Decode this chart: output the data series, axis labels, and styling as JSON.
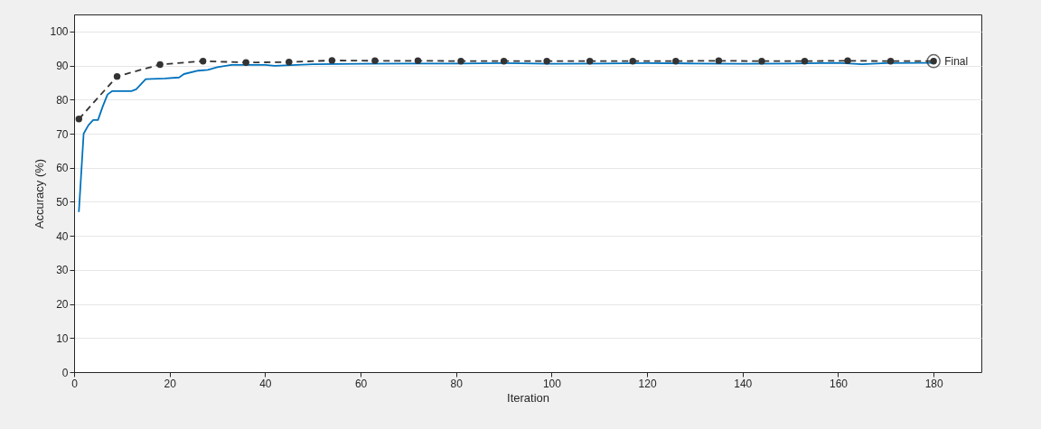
{
  "chart_data": {
    "type": "line",
    "xlabel": "Iteration",
    "ylabel": "Accuracy (%)",
    "xlim": [
      0,
      190
    ],
    "ylim": [
      0,
      105
    ],
    "xticks": [
      0,
      20,
      40,
      60,
      80,
      100,
      120,
      140,
      160,
      180
    ],
    "yticks": [
      0,
      10,
      20,
      30,
      40,
      50,
      60,
      70,
      80,
      90,
      100
    ],
    "grid": "y",
    "series": [
      {
        "color": "#0072bd",
        "line_style": "solid",
        "marker": "none",
        "x": [
          1,
          2,
          3,
          4,
          5,
          6,
          7,
          8,
          12,
          13,
          15,
          19,
          22,
          23,
          26,
          28,
          30,
          33,
          40,
          42,
          50,
          60,
          70,
          80,
          90,
          100,
          110,
          120,
          130,
          140,
          150,
          160,
          165,
          170,
          180
        ],
        "values": [
          47,
          70,
          72.5,
          74,
          74,
          78,
          81.5,
          82.5,
          82.5,
          83,
          86,
          86.2,
          86.5,
          87.5,
          88.5,
          88.7,
          89.5,
          90.2,
          90.2,
          89.9,
          90.4,
          90.5,
          90.6,
          90.6,
          90.7,
          90.5,
          90.6,
          90.7,
          90.6,
          90.5,
          90.6,
          90.8,
          90.4,
          90.7,
          90.8
        ]
      },
      {
        "color": "#333333",
        "line_style": "dashed",
        "marker": "circle",
        "x": [
          1,
          9,
          18,
          27,
          36,
          45,
          54,
          63,
          72,
          81,
          90,
          99,
          108,
          117,
          126,
          135,
          144,
          153,
          162,
          171,
          180
        ],
        "values": [
          74.3,
          86.8,
          90.3,
          91.3,
          90.9,
          91.0,
          91.5,
          91.4,
          91.4,
          91.3,
          91.3,
          91.3,
          91.3,
          91.3,
          91.3,
          91.4,
          91.3,
          91.3,
          91.4,
          91.3,
          91.3
        ]
      }
    ],
    "annotations": [
      {
        "text": "Final",
        "x": 180,
        "y": 91.3
      }
    ]
  }
}
